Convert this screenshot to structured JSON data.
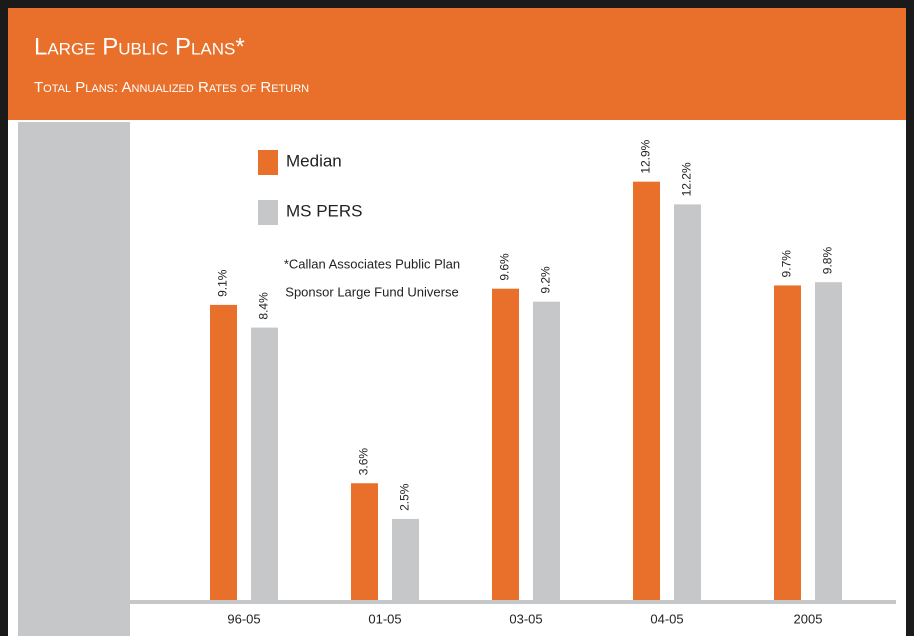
{
  "chart_data": {
    "type": "bar",
    "title": "Large Public Plans*",
    "subtitle": "Total Plans: Annualized Rates of Return",
    "annotations": [
      "*Callan Associates Public Plan",
      "Sponsor Large Fund Universe"
    ],
    "categories": [
      "96-05",
      "01-05",
      "03-05",
      "04-05",
      "2005"
    ],
    "series": [
      {
        "name": "Median",
        "color": "#e8702a",
        "values": [
          9.1,
          3.6,
          9.6,
          12.9,
          9.7
        ],
        "value_labels": [
          "9.1%",
          "3.6%",
          "9.6%",
          "12.9%",
          "9.7%"
        ]
      },
      {
        "name": "MS PERS",
        "color": "#c6c7c8",
        "values": [
          8.4,
          2.5,
          9.2,
          12.2,
          9.8
        ],
        "value_labels": [
          "8.4%",
          "2.5%",
          "9.2%",
          "12.2%",
          "9.8%"
        ]
      }
    ],
    "ylim": [
      0,
      14
    ]
  }
}
